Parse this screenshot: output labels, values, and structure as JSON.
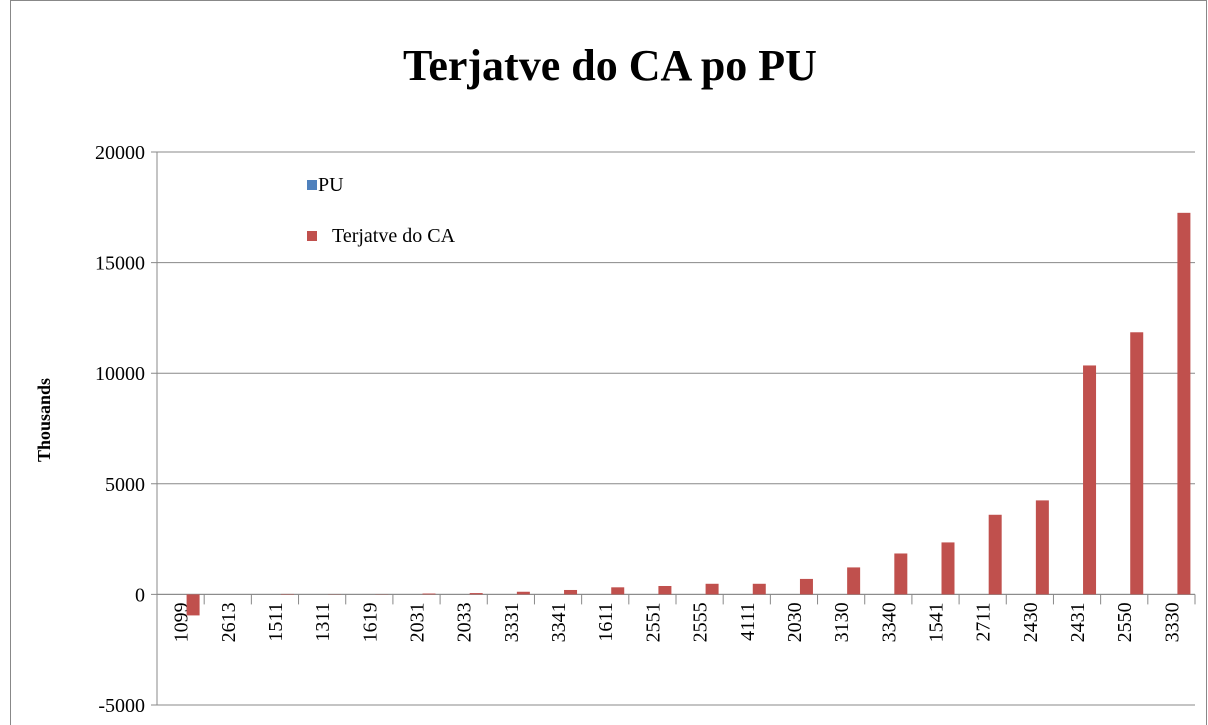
{
  "chart_data": {
    "type": "bar",
    "title": "Terjatve do CA po PU",
    "y_label": "Thousands",
    "categories": [
      "1099",
      "2613",
      "1511",
      "1311",
      "1619",
      "2031",
      "2033",
      "3331",
      "3341",
      "1611",
      "2551",
      "2555",
      "4111",
      "2030",
      "3130",
      "3340",
      "1541",
      "2711",
      "2430",
      "2431",
      "2550",
      "3330"
    ],
    "series": [
      {
        "name": "PU",
        "color": "#4f81bd",
        "values": [
          null,
          null,
          null,
          null,
          null,
          null,
          null,
          null,
          null,
          null,
          null,
          null,
          null,
          null,
          null,
          null,
          null,
          null,
          null,
          null,
          null,
          null
        ]
      },
      {
        "name": "Terjatve do CA",
        "color": "#c0504d",
        "values": [
          -950,
          0,
          20,
          10,
          10,
          40,
          60,
          120,
          200,
          320,
          380,
          480,
          480,
          700,
          1220,
          1850,
          2350,
          3600,
          4250,
          10350,
          11850,
          17250
        ]
      }
    ],
    "ylim": [
      -5000,
      20000
    ],
    "yticks": [
      -5000,
      0,
      5000,
      10000,
      15000,
      20000
    ],
    "grid": true,
    "legend": "top-left"
  }
}
